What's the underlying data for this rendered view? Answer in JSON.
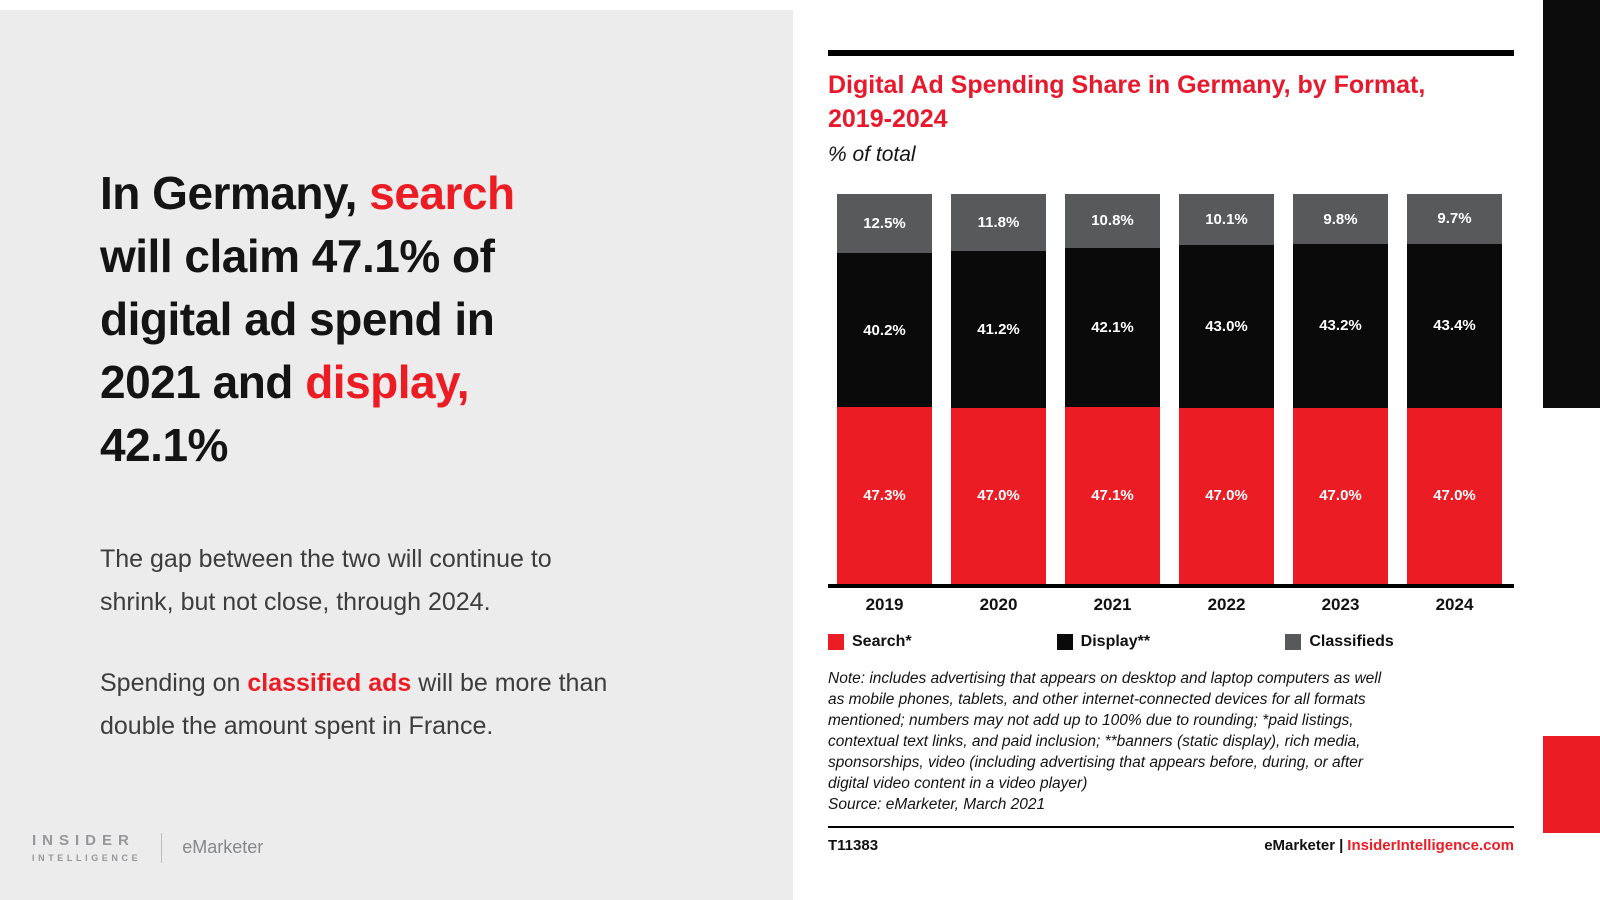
{
  "colors": {
    "accent_red": "#ec1c24",
    "display_black": "#0a0a0a",
    "classifieds_gray": "#58595b",
    "left_panel_bg": "#ececec"
  },
  "left_panel": {
    "headline_lines": [
      [
        {
          "t": "In Germany, "
        },
        {
          "t": "search",
          "red": true
        }
      ],
      [
        {
          "t": "will claim 47.1% of"
        }
      ],
      [
        {
          "t": "digital ad spend in"
        }
      ],
      [
        {
          "t": "2021 and "
        },
        {
          "t": "display,",
          "red": true
        }
      ],
      [
        {
          "t": "42.1%"
        }
      ]
    ],
    "paragraph1_lines": [
      "The gap between the two will continue to",
      "shrink, but not close, through 2024."
    ],
    "paragraph2_lines": [
      [
        {
          "t": "Spending on "
        },
        {
          "t": "classified ads",
          "red": true,
          "bold": true
        },
        {
          "t": " will be more than"
        }
      ],
      [
        {
          "t": "double the amount spent in France."
        }
      ]
    ],
    "logo": {
      "line1": "INSIDER",
      "line2": "INTELLIGENCE",
      "brand": "eMarketer"
    }
  },
  "chart_panel": {
    "title_lines": [
      "Digital Ad Spending Share in Germany, by Format,",
      "2019-2024"
    ],
    "subtitle": "% of total",
    "note_lines": [
      "Note: includes advertising that appears on desktop and laptop computers as well",
      "as mobile phones, tablets, and other internet-connected devices for all formats",
      "mentioned; numbers may not add up to 100% due to rounding; *paid listings,",
      "contextual text links, and paid inclusion; **banners (static display), rich media,",
      "sponsorships, video (including advertising that appears before, during, or after",
      "digital video content in a video player)",
      "Source: eMarketer, March 2021"
    ],
    "chart_id": "T11383",
    "footer_brand": "eMarketer",
    "footer_separator": "|",
    "footer_site": "InsiderIntelligence.com"
  },
  "chart_data": {
    "type": "bar",
    "stacked": true,
    "title": "Digital Ad Spending Share in Germany, by Format, 2019-2024",
    "subtitle": "% of total",
    "categories": [
      "2019",
      "2020",
      "2021",
      "2022",
      "2023",
      "2024"
    ],
    "series": [
      {
        "name": "Search*",
        "color": "#ec1c24",
        "values": [
          47.3,
          47.0,
          47.1,
          47.0,
          47.0,
          47.0
        ]
      },
      {
        "name": "Display**",
        "color": "#0a0a0a",
        "values": [
          40.2,
          41.2,
          42.1,
          43.0,
          43.2,
          43.4
        ]
      },
      {
        "name": "Classifieds",
        "color": "#58595b",
        "values": [
          12.5,
          11.8,
          10.8,
          10.1,
          9.8,
          9.7
        ]
      }
    ],
    "value_suffix": "%",
    "ylim": [
      0,
      100
    ],
    "grid": false,
    "legend_position": "bottom",
    "segment_order_bottom_to_top": [
      "Search*",
      "Display**",
      "Classifieds"
    ]
  }
}
